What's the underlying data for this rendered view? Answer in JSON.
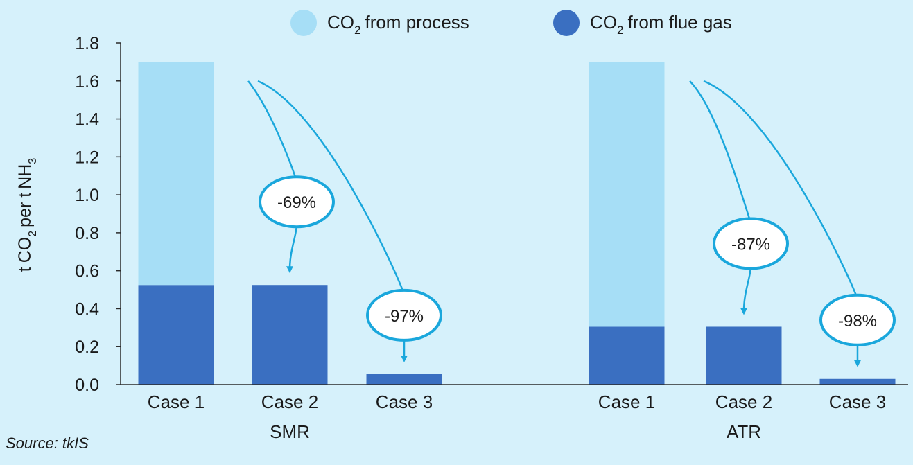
{
  "chart_data": {
    "type": "bar",
    "stacked": true,
    "ylabel": {
      "t": "t",
      "co": "CO",
      "co_sub": "2",
      "per": "per t",
      "nh": "NH",
      "nh_sub": "3"
    },
    "ylim": [
      0,
      1.8
    ],
    "y_ticks": [
      "0.0",
      "0.2",
      "0.4",
      "0.6",
      "0.8",
      "1.0",
      "1.2",
      "1.4",
      "1.6",
      "1.8"
    ],
    "grid": false,
    "legend_placement": "top-center",
    "groups": [
      {
        "name": "SMR",
        "categories": [
          "Case 1",
          "Case 2",
          "Case 3"
        ],
        "flue_gas": [
          0.525,
          0.525,
          0.055
        ],
        "process": [
          1.175,
          0,
          0
        ]
      },
      {
        "name": "ATR",
        "categories": [
          "Case 1",
          "Case 2",
          "Case 3"
        ],
        "flue_gas": [
          0.305,
          0.305,
          0.03
        ],
        "process": [
          1.395,
          0,
          0
        ]
      }
    ],
    "series": [
      {
        "name": {
          "co": "CO",
          "sub": "2",
          "rest": "from process"
        },
        "key": "process",
        "color": "#a6def6"
      },
      {
        "name": {
          "co": "CO",
          "sub": "2",
          "rest": "from flue gas"
        },
        "key": "flue_gas",
        "color": "#3a6fc1"
      }
    ],
    "annotations": [
      {
        "group": 0,
        "target": 1,
        "label": "-69%"
      },
      {
        "group": 0,
        "target": 2,
        "label": "-97%"
      },
      {
        "group": 1,
        "target": 1,
        "label": "-87%"
      },
      {
        "group": 1,
        "target": 2,
        "label": "-98%"
      }
    ],
    "source": "Source: tkIS",
    "colors": {
      "axis": "#2a2a2a",
      "arrow": "#1aa7dc",
      "bubble_fill": "#ffffff",
      "background": "#d6f1fb"
    }
  }
}
